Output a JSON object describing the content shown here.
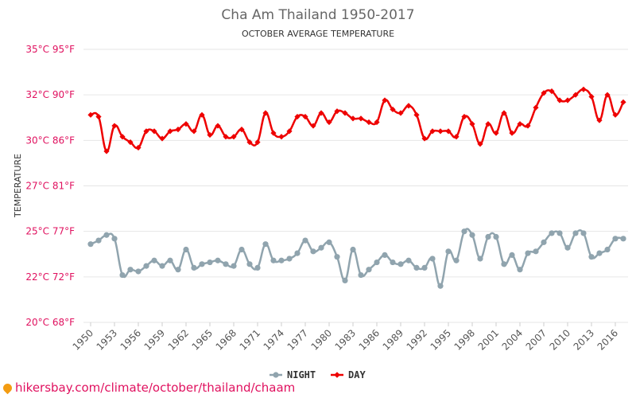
{
  "title": "Cha Am Thailand 1950-2017",
  "subtitle": "OCTOBER AVERAGE TEMPERATURE",
  "footer_text": "hikersbay.com/climate/october/thailand/chaam",
  "colors": {
    "night": "#90a4ae",
    "day": "#ee0000",
    "ytick": "#e0115f",
    "grid": "#e6e6e6"
  },
  "chart_data": {
    "type": "line",
    "title": "Cha Am Thailand 1950-2017",
    "subtitle": "OCTOBER AVERAGE TEMPERATURE",
    "xlabel": "",
    "ylabel": "TEMPERATURE",
    "ylim": [
      20,
      35
    ],
    "yticks": [
      {
        "value": 20,
        "label": "20°C 68°F"
      },
      {
        "value": 22.5,
        "label": "22°C 72°F"
      },
      {
        "value": 25,
        "label": "25°C 77°F"
      },
      {
        "value": 27.5,
        "label": "27°C 81°F"
      },
      {
        "value": 30,
        "label": "30°C 86°F"
      },
      {
        "value": 32.5,
        "label": "32°C 90°F"
      },
      {
        "value": 35,
        "label": "35°C 95°F"
      }
    ],
    "xticks": [
      "1950",
      "1953",
      "1956",
      "1959",
      "1962",
      "1965",
      "1968",
      "1971",
      "1974",
      "1977",
      "1980",
      "1983",
      "1986",
      "1989",
      "1992",
      "1995",
      "1998",
      "2001",
      "2004",
      "2007",
      "2010",
      "2013",
      "2016"
    ],
    "grid": true,
    "legend_position": "bottom",
    "x": [
      1950,
      1951,
      1952,
      1953,
      1954,
      1955,
      1956,
      1957,
      1958,
      1959,
      1960,
      1961,
      1962,
      1963,
      1964,
      1965,
      1966,
      1967,
      1968,
      1969,
      1970,
      1971,
      1972,
      1973,
      1974,
      1975,
      1976,
      1977,
      1978,
      1979,
      1980,
      1981,
      1982,
      1983,
      1984,
      1985,
      1986,
      1987,
      1988,
      1989,
      1990,
      1991,
      1992,
      1993,
      1994,
      1995,
      1996,
      1997,
      1998,
      1999,
      2000,
      2001,
      2002,
      2003,
      2004,
      2005,
      2006,
      2007,
      2008,
      2009,
      2010,
      2011,
      2012,
      2013,
      2014,
      2015,
      2016,
      2017
    ],
    "series": [
      {
        "name": "NIGHT",
        "values": [
          24.3,
          24.5,
          24.8,
          24.6,
          22.6,
          22.9,
          22.8,
          23.1,
          23.4,
          23.1,
          23.4,
          22.9,
          24.0,
          23.0,
          23.2,
          23.3,
          23.4,
          23.2,
          23.1,
          24.0,
          23.2,
          23.0,
          24.3,
          23.4,
          23.4,
          23.5,
          23.8,
          24.5,
          23.9,
          24.1,
          24.4,
          23.6,
          22.3,
          24.0,
          22.6,
          22.9,
          23.3,
          23.7,
          23.3,
          23.2,
          23.4,
          23.0,
          23.0,
          23.5,
          22.0,
          23.9,
          23.4,
          25.0,
          24.8,
          23.5,
          24.7,
          24.7,
          23.2,
          23.7,
          22.9,
          23.8,
          23.9,
          24.4,
          24.9,
          24.9,
          24.1,
          24.9,
          24.9,
          23.6,
          23.8,
          24.0,
          24.6,
          24.6
        ]
      },
      {
        "name": "DAY",
        "values": [
          31.4,
          31.3,
          29.4,
          30.8,
          30.2,
          29.9,
          29.6,
          30.5,
          30.5,
          30.1,
          30.5,
          30.6,
          30.9,
          30.5,
          31.4,
          30.3,
          30.8,
          30.2,
          30.2,
          30.6,
          29.9,
          29.9,
          31.5,
          30.4,
          30.2,
          30.5,
          31.3,
          31.3,
          30.8,
          31.5,
          31.0,
          31.6,
          31.5,
          31.2,
          31.2,
          31.0,
          31.0,
          32.2,
          31.7,
          31.5,
          31.9,
          31.4,
          30.1,
          30.5,
          30.5,
          30.5,
          30.2,
          31.3,
          30.9,
          29.8,
          30.9,
          30.4,
          31.5,
          30.4,
          30.9,
          30.8,
          31.8,
          32.6,
          32.7,
          32.2,
          32.2,
          32.5,
          32.8,
          32.4,
          31.1,
          32.5,
          31.4,
          32.1
        ]
      }
    ]
  }
}
